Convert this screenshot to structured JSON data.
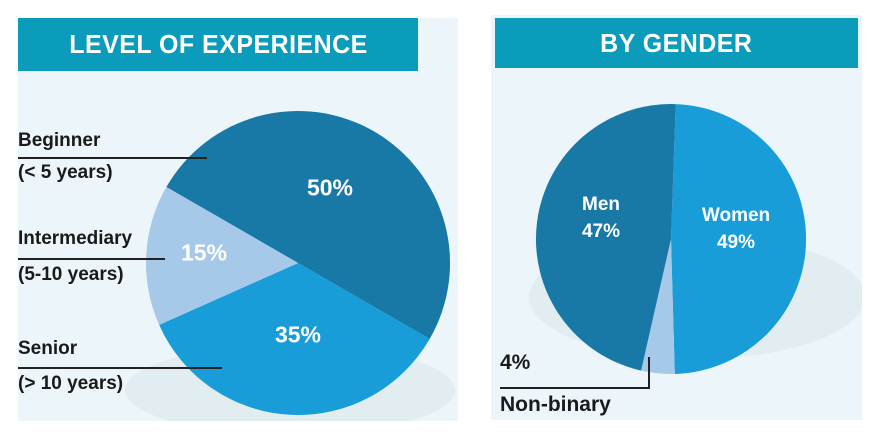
{
  "colors": {
    "banner_teal": "#0a9cba",
    "panel_bg": "#ecf5f9",
    "dark_blue": "#1879a6",
    "bright_blue": "#189dd9",
    "pale_blue": "#a7c9e9",
    "pie_shadow": "#e2edf2",
    "label_text": "#1a1a1a",
    "pct_text": "#ffffff"
  },
  "chart_data": [
    {
      "type": "pie",
      "title": "LEVEL OF EXPERIENCE",
      "start_deg": 150,
      "direction": "clockwise",
      "legend_position": "left-callouts",
      "slices": [
        {
          "label": "Beginner",
          "sublabel": "(< 5 years)",
          "value": 50,
          "pct_label": "50%",
          "color": "#1879a6"
        },
        {
          "label": "Senior",
          "sublabel": "(> 10 years)",
          "value": 35,
          "pct_label": "35%",
          "color": "#189dd9"
        },
        {
          "label": "Intermediary",
          "sublabel": "(5-10 years)",
          "value": 15,
          "pct_label": "15%",
          "color": "#a7c9e9"
        }
      ]
    },
    {
      "type": "pie",
      "title": "BY GENDER",
      "start_deg": 88,
      "direction": "clockwise",
      "legend_position": "inside-and-callout",
      "slices": [
        {
          "label": "Women",
          "value": 49,
          "pct_label": "49%",
          "color": "#189dd9"
        },
        {
          "label": "Non-binary",
          "value": 4,
          "pct_label": "4%",
          "color": "#a7c9e9"
        },
        {
          "label": "Men",
          "value": 47,
          "pct_label": "47%",
          "color": "#1879a6"
        }
      ]
    }
  ]
}
